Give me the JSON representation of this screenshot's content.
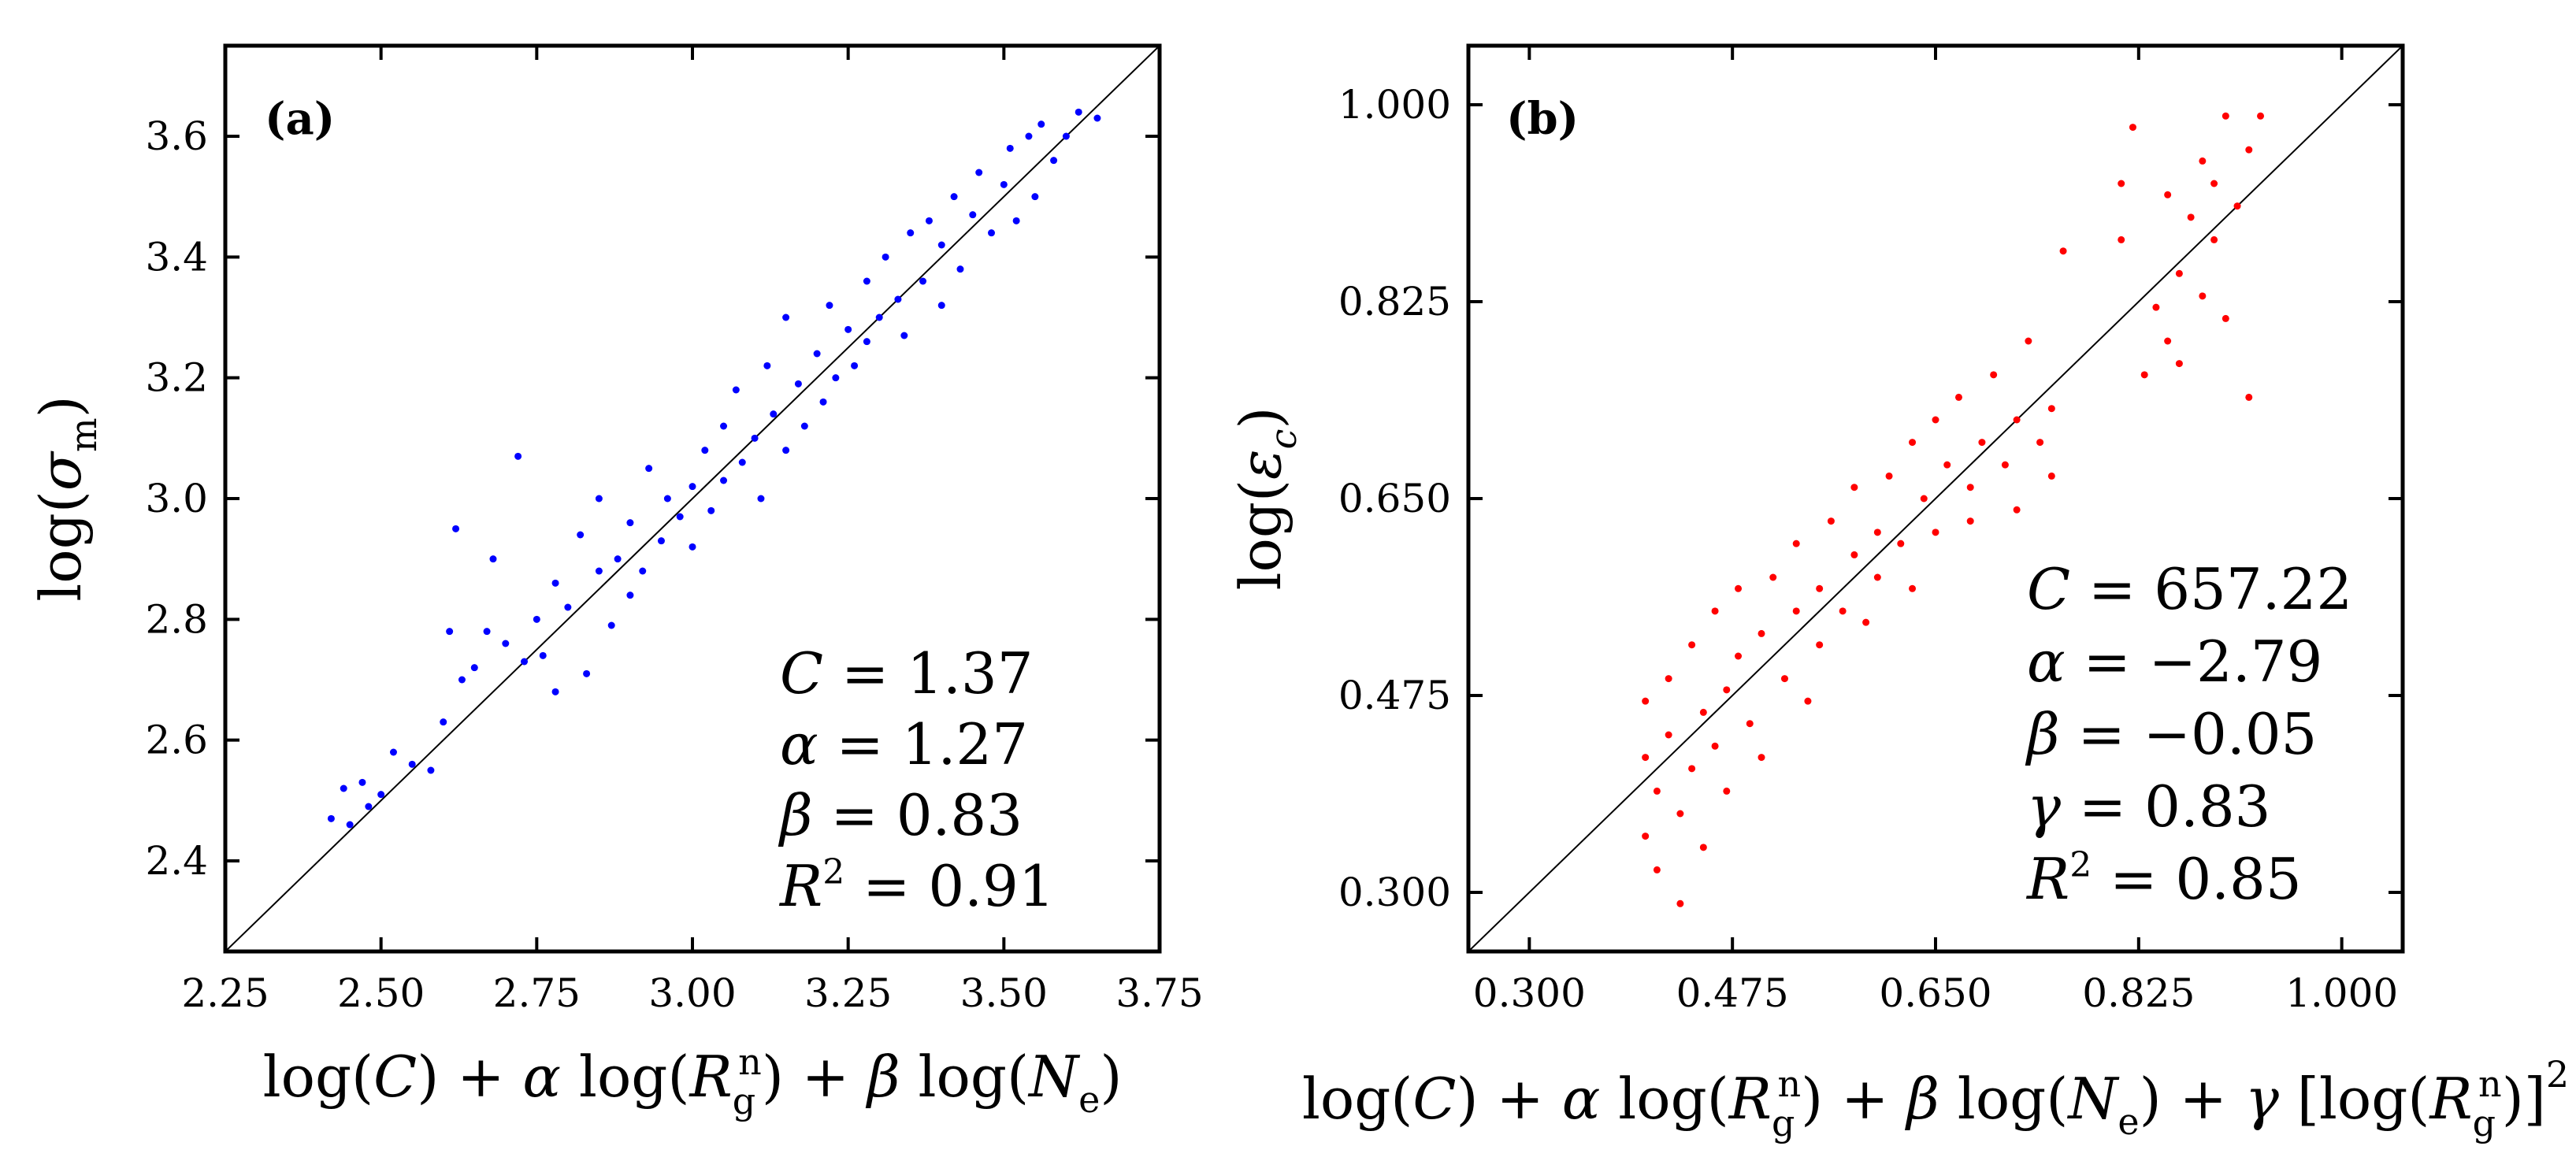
{
  "chart_data": [
    {
      "panel": "(a)",
      "type": "scatter",
      "title": "",
      "xlabel": "log(C) + α log(Rgn) + β log(Ne)",
      "ylabel": "log(σm)",
      "xlim": [
        2.25,
        3.75
      ],
      "ylim": [
        2.25,
        3.75
      ],
      "xticks": [
        2.25,
        2.5,
        2.75,
        3.0,
        3.25,
        3.5,
        3.75
      ],
      "yticks": [
        2.4,
        2.6,
        2.8,
        3.0,
        3.2,
        3.4,
        3.6
      ],
      "xtick_labels": [
        "2.25",
        "2.50",
        "2.75",
        "3.00",
        "3.25",
        "3.50",
        "3.75"
      ],
      "ytick_labels": [
        "2.4",
        "2.6",
        "2.8",
        "3.0",
        "3.2",
        "3.4",
        "3.6"
      ],
      "reference_line": "y = x",
      "point_color": "#0000ff",
      "annotations": [
        "C = 1.37",
        "α = 1.27",
        "β = 0.83",
        "R2 = 0.91"
      ],
      "series": [
        {
          "name": "data",
          "points": [
            [
              2.42,
              2.47
            ],
            [
              2.44,
              2.52
            ],
            [
              2.45,
              2.46
            ],
            [
              2.47,
              2.53
            ],
            [
              2.48,
              2.49
            ],
            [
              2.5,
              2.51
            ],
            [
              2.52,
              2.58
            ],
            [
              2.55,
              2.56
            ],
            [
              2.58,
              2.55
            ],
            [
              2.6,
              2.63
            ],
            [
              2.61,
              2.78
            ],
            [
              2.62,
              2.95
            ],
            [
              2.63,
              2.7
            ],
            [
              2.65,
              2.72
            ],
            [
              2.67,
              2.78
            ],
            [
              2.68,
              2.9
            ],
            [
              2.7,
              2.76
            ],
            [
              2.72,
              3.07
            ],
            [
              2.73,
              2.73
            ],
            [
              2.75,
              2.8
            ],
            [
              2.76,
              2.74
            ],
            [
              2.78,
              2.68
            ],
            [
              2.78,
              2.86
            ],
            [
              2.8,
              2.82
            ],
            [
              2.82,
              2.94
            ],
            [
              2.83,
              2.71
            ],
            [
              2.85,
              2.88
            ],
            [
              2.85,
              3.0
            ],
            [
              2.87,
              2.79
            ],
            [
              2.88,
              2.9
            ],
            [
              2.9,
              2.96
            ],
            [
              2.9,
              2.84
            ],
            [
              2.92,
              2.88
            ],
            [
              2.93,
              3.05
            ],
            [
              2.95,
              2.93
            ],
            [
              2.96,
              3.0
            ],
            [
              2.98,
              2.97
            ],
            [
              3.0,
              3.02
            ],
            [
              3.0,
              2.92
            ],
            [
              3.02,
              3.08
            ],
            [
              3.03,
              2.98
            ],
            [
              3.05,
              3.12
            ],
            [
              3.05,
              3.03
            ],
            [
              3.07,
              3.18
            ],
            [
              3.08,
              3.06
            ],
            [
              3.1,
              3.1
            ],
            [
              3.11,
              3.0
            ],
            [
              3.12,
              3.22
            ],
            [
              3.13,
              3.14
            ],
            [
              3.15,
              3.3
            ],
            [
              3.15,
              3.08
            ],
            [
              3.17,
              3.19
            ],
            [
              3.18,
              3.12
            ],
            [
              3.2,
              3.24
            ],
            [
              3.21,
              3.16
            ],
            [
              3.22,
              3.32
            ],
            [
              3.23,
              3.2
            ],
            [
              3.25,
              3.28
            ],
            [
              3.26,
              3.22
            ],
            [
              3.28,
              3.36
            ],
            [
              3.28,
              3.26
            ],
            [
              3.3,
              3.3
            ],
            [
              3.31,
              3.4
            ],
            [
              3.33,
              3.33
            ],
            [
              3.34,
              3.27
            ],
            [
              3.35,
              3.44
            ],
            [
              3.37,
              3.36
            ],
            [
              3.38,
              3.46
            ],
            [
              3.4,
              3.42
            ],
            [
              3.4,
              3.32
            ],
            [
              3.42,
              3.5
            ],
            [
              3.43,
              3.38
            ],
            [
              3.45,
              3.47
            ],
            [
              3.46,
              3.54
            ],
            [
              3.48,
              3.44
            ],
            [
              3.5,
              3.52
            ],
            [
              3.51,
              3.58
            ],
            [
              3.52,
              3.46
            ],
            [
              3.54,
              3.6
            ],
            [
              3.55,
              3.5
            ],
            [
              3.56,
              3.62
            ],
            [
              3.58,
              3.56
            ],
            [
              3.6,
              3.6
            ],
            [
              3.62,
              3.64
            ],
            [
              3.65,
              3.63
            ]
          ]
        }
      ]
    },
    {
      "panel": "(b)",
      "type": "scatter",
      "title": "",
      "xlabel": "log(C) + α log(Rgn) + β log(Ne) + γ [log(Rgn)]2",
      "ylabel": "log(εc)",
      "xlim": [
        0.2475,
        1.0525
      ],
      "ylim": [
        0.2475,
        1.0525
      ],
      "xticks": [
        0.3,
        0.475,
        0.65,
        0.825,
        1.0
      ],
      "yticks": [
        0.3,
        0.475,
        0.65,
        0.825,
        1.0
      ],
      "xtick_labels": [
        "0.300",
        "0.475",
        "0.650",
        "0.825",
        "1.000"
      ],
      "ytick_labels": [
        "0.300",
        "0.475",
        "0.650",
        "0.825",
        "1.000"
      ],
      "reference_line": "y = x",
      "point_color": "#ff0000",
      "annotations": [
        "C = 657.22",
        "α = −2.79",
        "β = −0.05",
        "γ = 0.83",
        "R2 = 0.85"
      ],
      "series": [
        {
          "name": "data",
          "points": [
            [
              0.4,
              0.35
            ],
            [
              0.4,
              0.42
            ],
            [
              0.4,
              0.47
            ],
            [
              0.41,
              0.39
            ],
            [
              0.41,
              0.32
            ],
            [
              0.42,
              0.44
            ],
            [
              0.42,
              0.49
            ],
            [
              0.43,
              0.37
            ],
            [
              0.43,
              0.29
            ],
            [
              0.44,
              0.41
            ],
            [
              0.44,
              0.52
            ],
            [
              0.45,
              0.46
            ],
            [
              0.45,
              0.34
            ],
            [
              0.46,
              0.55
            ],
            [
              0.46,
              0.43
            ],
            [
              0.47,
              0.48
            ],
            [
              0.47,
              0.39
            ],
            [
              0.48,
              0.51
            ],
            [
              0.48,
              0.57
            ],
            [
              0.49,
              0.45
            ],
            [
              0.5,
              0.53
            ],
            [
              0.5,
              0.42
            ],
            [
              0.51,
              0.58
            ],
            [
              0.52,
              0.49
            ],
            [
              0.53,
              0.55
            ],
            [
              0.53,
              0.61
            ],
            [
              0.54,
              0.47
            ],
            [
              0.55,
              0.57
            ],
            [
              0.55,
              0.52
            ],
            [
              0.56,
              0.63
            ],
            [
              0.57,
              0.55
            ],
            [
              0.58,
              0.6
            ],
            [
              0.58,
              0.66
            ],
            [
              0.59,
              0.54
            ],
            [
              0.6,
              0.62
            ],
            [
              0.6,
              0.58
            ],
            [
              0.61,
              0.67
            ],
            [
              0.62,
              0.61
            ],
            [
              0.63,
              0.7
            ],
            [
              0.63,
              0.57
            ],
            [
              0.64,
              0.65
            ],
            [
              0.65,
              0.72
            ],
            [
              0.65,
              0.62
            ],
            [
              0.66,
              0.68
            ],
            [
              0.67,
              0.74
            ],
            [
              0.68,
              0.66
            ],
            [
              0.68,
              0.63
            ],
            [
              0.69,
              0.7
            ],
            [
              0.7,
              0.76
            ],
            [
              0.71,
              0.68
            ],
            [
              0.72,
              0.64
            ],
            [
              0.72,
              0.72
            ],
            [
              0.73,
              0.79
            ],
            [
              0.74,
              0.7
            ],
            [
              0.75,
              0.67
            ],
            [
              0.75,
              0.73
            ],
            [
              0.76,
              0.87
            ],
            [
              0.81,
              0.88
            ],
            [
              0.81,
              0.93
            ],
            [
              0.82,
              0.98
            ],
            [
              0.83,
              0.76
            ],
            [
              0.84,
              0.82
            ],
            [
              0.85,
              0.92
            ],
            [
              0.85,
              0.79
            ],
            [
              0.86,
              0.85
            ],
            [
              0.86,
              0.77
            ],
            [
              0.87,
              0.9
            ],
            [
              0.88,
              0.95
            ],
            [
              0.88,
              0.83
            ],
            [
              0.89,
              0.88
            ],
            [
              0.89,
              0.93
            ],
            [
              0.9,
              0.99
            ],
            [
              0.9,
              0.81
            ],
            [
              0.91,
              0.91
            ],
            [
              0.92,
              0.96
            ],
            [
              0.92,
              0.74
            ],
            [
              0.93,
              0.99
            ]
          ]
        }
      ]
    }
  ]
}
